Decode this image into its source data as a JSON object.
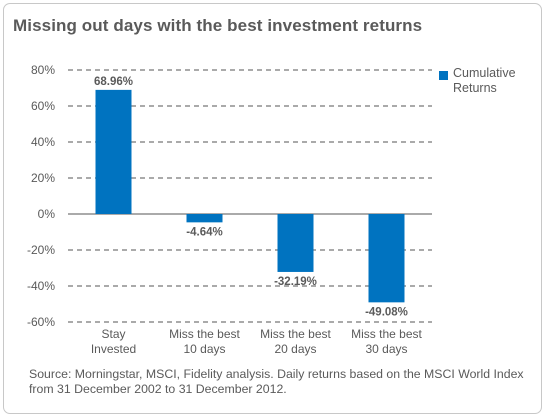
{
  "title": "Missing out days with the best investment returns",
  "source_note": "Source: Morningstar, MSCI, Fidelity analysis. Daily returns based on the MSCI World Index from 31 December 2002 to 31 December 2012.",
  "colors": {
    "bar": "#0073c0",
    "text": "#5a5a5a",
    "grid": "#555555",
    "frame": "#c8c8c8"
  },
  "chart_data": {
    "type": "bar",
    "categories": [
      [
        "Stay",
        "Invested"
      ],
      [
        "Miss the best",
        "10 days"
      ],
      [
        "Miss the best",
        "20 days"
      ],
      [
        "Miss the best",
        "30 days"
      ]
    ],
    "series": [
      {
        "name": "Cumulative Returns",
        "values": [
          68.96,
          -4.64,
          -32.19,
          -49.08
        ]
      }
    ],
    "data_labels": [
      "68.96%",
      "-4.64%",
      "-32.19%",
      "-49.08%"
    ],
    "y_ticks": [
      "80%",
      "60%",
      "40%",
      "20%",
      "0%",
      "-20%",
      "-40%",
      "-60%"
    ],
    "y_tick_values": [
      80,
      60,
      40,
      20,
      0,
      -20,
      -40,
      -60
    ],
    "ylim": [
      -60,
      80
    ],
    "grid": true,
    "legend_position": "right",
    "xlabel": "",
    "ylabel": ""
  }
}
